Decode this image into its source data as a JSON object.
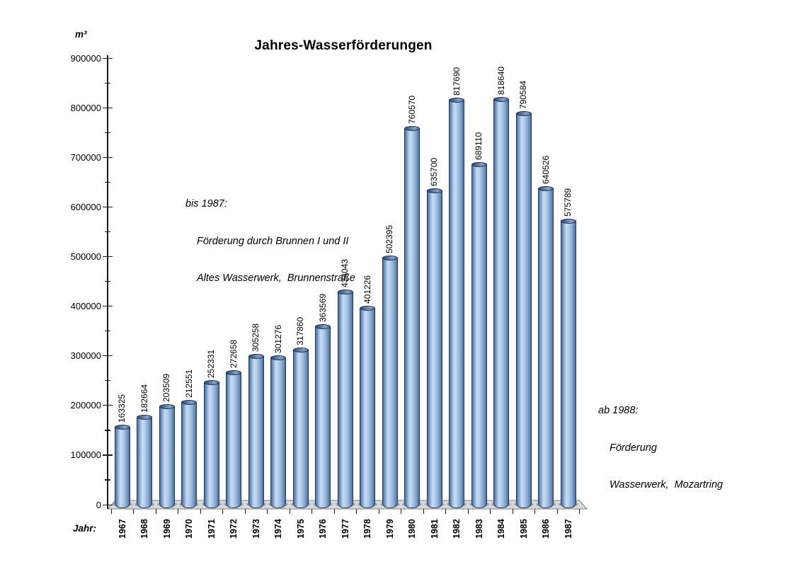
{
  "header": {
    "title": "Jahres-Wasserförderungen"
  },
  "y_axis": {
    "unit_label": "m³"
  },
  "x_axis": {
    "label": "Jahr:"
  },
  "annotations": {
    "note_left": {
      "line1": "bis 1987:",
      "line2": "Förderung durch Brunnen I und II",
      "line3": "Altes Wasserwerk,  Brunnenstraße"
    },
    "note_right": {
      "line1": "ab 1988:",
      "line2": "Förderung",
      "line3": "Wasserwerk,  Mozartring"
    }
  },
  "chart_data": {
    "type": "bar",
    "title": "Jahres-Wasserförderungen",
    "xlabel": "Jahr:",
    "ylabel": "m³",
    "categories": [
      "1967",
      "1968",
      "1969",
      "1970",
      "1971",
      "1972",
      "1973",
      "1974",
      "1975",
      "1976",
      "1977",
      "1978",
      "1979",
      "1980",
      "1981",
      "1982",
      "1983",
      "1984",
      "1985",
      "1986",
      "1987"
    ],
    "values": [
      163325,
      182664,
      203509,
      212551,
      252331,
      272658,
      305258,
      301276,
      317860,
      363569,
      434043,
      401226,
      502395,
      760570,
      635700,
      817690,
      689110,
      818640,
      790584,
      640526,
      575789
    ],
    "ylim": [
      0,
      900000
    ],
    "y_tick_labels": [
      "0",
      "100000",
      "200000",
      "300000",
      "400000",
      "500000",
      "600000",
      "700000",
      "800000",
      "900000"
    ],
    "y_tick_step": 100000,
    "y_minor_tick_step": 50000,
    "grid": false,
    "legend": false,
    "bar_style": "3d-cylinder",
    "colors": {
      "bar_highlight": "#c6dcf4",
      "bar_edge": "#1e3c63",
      "bar_dark_side": "#4a6b99",
      "cap": "#5a6e8f",
      "floor": "#d8d8d8",
      "floor_edge": "#7f7f7f",
      "base_shadow": "#9aa1ad",
      "text": "#000000"
    }
  }
}
